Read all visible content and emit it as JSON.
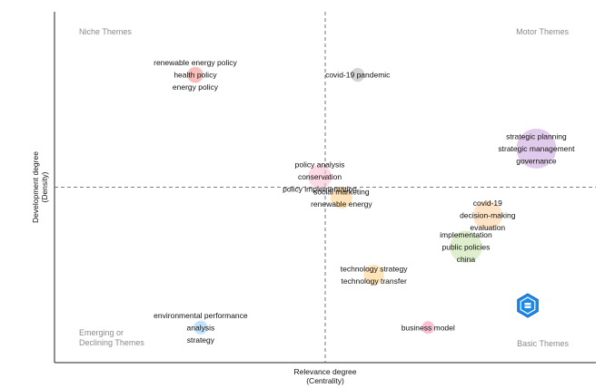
{
  "chart_data": {
    "type": "scatter",
    "xlabel": [
      "Relevance degree",
      "(Centrality)"
    ],
    "ylabel": [
      "Development degree",
      "(Density)"
    ],
    "quadrants": {
      "top_left": "Niche Themes",
      "top_right": "Motor Themes",
      "bottom_left": [
        "Emerging or",
        "Declining Themes"
      ],
      "bottom_right": "Basic Themes"
    },
    "grid": false,
    "x_divider": 0.5,
    "y_divider": 0.5,
    "xlim": [
      0,
      1
    ],
    "ylim": [
      0,
      1
    ],
    "clusters": [
      {
        "x": 0.26,
        "y": 0.82,
        "size": 0.8,
        "color": "#f28b82",
        "labels": [
          "renewable energy policy",
          "health policy",
          "energy policy"
        ]
      },
      {
        "x": 0.56,
        "y": 0.82,
        "size": 0.6,
        "color": "#b0b0b0",
        "labels": [
          "covid-19 pandemic"
        ]
      },
      {
        "x": 0.89,
        "y": 0.61,
        "size": 3.0,
        "color": "#c9a0dc",
        "labels": [
          "strategic planning",
          "strategic management",
          "governance"
        ]
      },
      {
        "x": 0.49,
        "y": 0.53,
        "size": 1.5,
        "color": "#f8bbd0",
        "labels": [
          "policy analysis",
          "conservation",
          "policy implementation"
        ]
      },
      {
        "x": 0.53,
        "y": 0.47,
        "size": 1.3,
        "color": "#ffcc80",
        "labels": [
          "social marketing",
          "renewable energy"
        ]
      },
      {
        "x": 0.8,
        "y": 0.42,
        "size": 2.0,
        "color": "#ffcc99",
        "labels": [
          "covid-19",
          "decision-making",
          "evaluation"
        ]
      },
      {
        "x": 0.76,
        "y": 0.33,
        "size": 2.3,
        "color": "#c5e1a5",
        "labels": [
          "implementation",
          "public policies",
          "china"
        ]
      },
      {
        "x": 0.59,
        "y": 0.25,
        "size": 1.2,
        "color": "#ffcc80",
        "labels": [
          "technology strategy",
          "technology transfer"
        ]
      },
      {
        "x": 0.27,
        "y": 0.1,
        "size": 0.6,
        "color": "#90caf9",
        "labels": [
          "environmental performance",
          "analysis",
          "strategy"
        ]
      },
      {
        "x": 0.69,
        "y": 0.1,
        "size": 0.5,
        "color": "#f48fb1",
        "labels": [
          "business model"
        ]
      }
    ]
  },
  "logo": {
    "name": "hexagon-logo-icon",
    "color": "#1e88e5"
  }
}
